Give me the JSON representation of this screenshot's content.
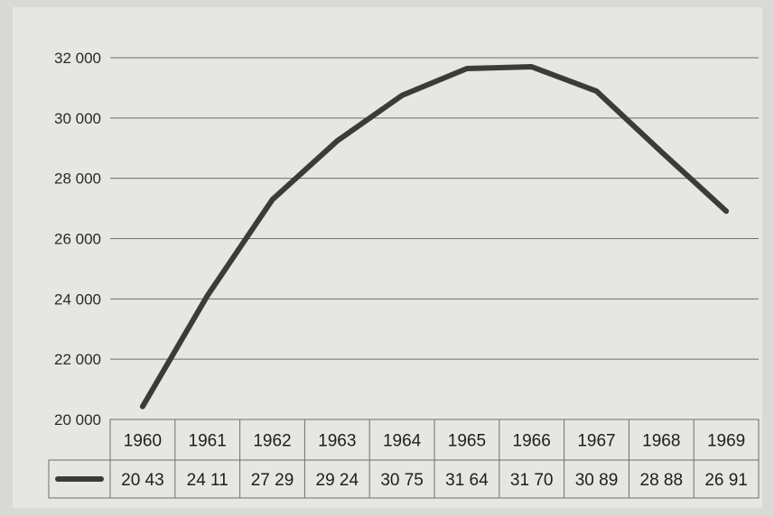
{
  "colors": {
    "paper": "#e6e6e3",
    "grid": "#6e6e6e",
    "line": "#3b3b3b",
    "text": "#1e1e1e"
  },
  "chart_data": {
    "type": "line",
    "title": "",
    "xlabel": "",
    "ylabel": "",
    "categories": [
      "1960",
      "1961",
      "1962",
      "1963",
      "1964",
      "1965",
      "1966",
      "1967",
      "1968",
      "1969"
    ],
    "series": [
      {
        "values": [
          20430,
          24110,
          27290,
          29240,
          30750,
          31640,
          31700,
          30890,
          28880,
          26910
        ],
        "labels": [
          "20 43",
          "24 11",
          "27 29",
          "29 24",
          "30 75",
          "31 64",
          "31 70",
          "30 89",
          "28 88",
          "26 91"
        ]
      }
    ],
    "yticks": [
      20000,
      22000,
      24000,
      26000,
      28000,
      30000,
      32000
    ],
    "ytick_labels": [
      "20 000",
      "22 000",
      "24 000",
      "26 000",
      "28 000",
      "30 000",
      "32 000"
    ],
    "ylim": [
      20000,
      32000
    ],
    "grid": true,
    "legend": "data-table-bottom"
  }
}
